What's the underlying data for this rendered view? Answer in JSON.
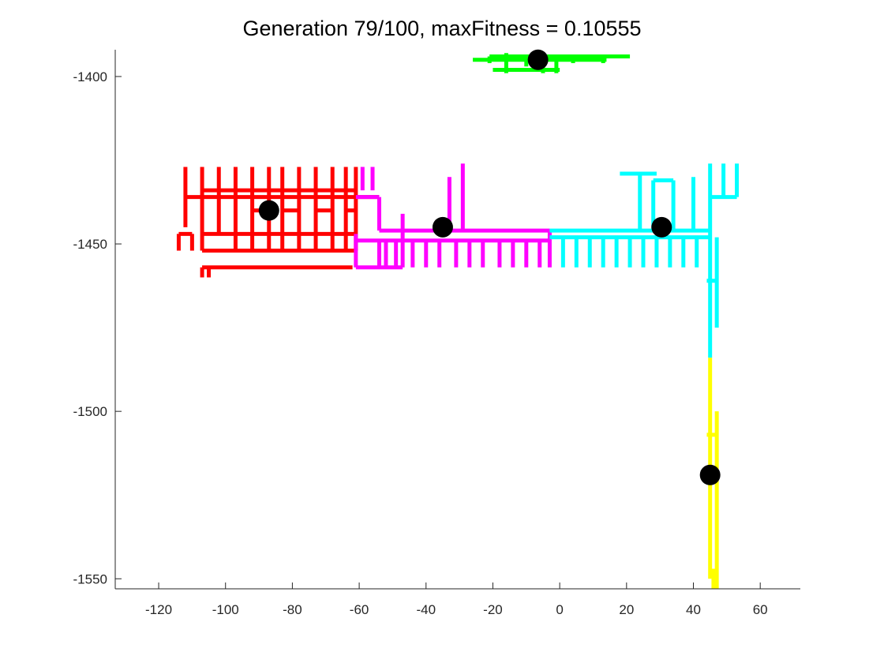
{
  "chart_data": {
    "type": "line",
    "title": "Generation 79/100, maxFitness = 0.10555",
    "xlabel": "",
    "ylabel": "",
    "xlim": [
      -133,
      72
    ],
    "ylim": [
      -1553,
      -1392
    ],
    "x_ticks": [
      -120,
      -100,
      -80,
      -60,
      -40,
      -20,
      0,
      20,
      40,
      60
    ],
    "y_ticks": [
      -1400,
      -1450,
      -1500,
      -1550
    ],
    "grid": false,
    "legend": "none",
    "box": false,
    "colors": {
      "green": "#00ff00",
      "red": "#ff0000",
      "magenta": "#ff00ff",
      "cyan": "#00ffff",
      "yellow": "#ffff00",
      "marker": "#000000"
    },
    "series": [
      {
        "color": "green",
        "segments": [
          [
            [
              -26,
              -1395
            ],
            [
              14,
              -1395
            ]
          ],
          [
            [
              -21,
              -1394
            ],
            [
              21,
              -1394
            ]
          ],
          [
            [
              -20,
              -1398
            ],
            [
              0,
              -1398
            ]
          ],
          [
            [
              -26,
              -1396
            ],
            [
              -26,
              -1396
            ]
          ],
          [
            [
              -21,
              -1394
            ],
            [
              -21,
              -1396
            ]
          ],
          [
            [
              -16,
              -1393
            ],
            [
              -16,
              -1399
            ]
          ],
          [
            [
              -10,
              -1394
            ],
            [
              -10,
              -1397
            ]
          ],
          [
            [
              -5,
              -1395
            ],
            [
              -5,
              -1399
            ]
          ],
          [
            [
              -1,
              -1394
            ],
            [
              -1,
              -1399
            ]
          ],
          [
            [
              4,
              -1394
            ],
            [
              4,
              -1396
            ]
          ],
          [
            [
              13,
              -1394
            ],
            [
              13,
              -1396
            ]
          ]
        ]
      },
      {
        "color": "red",
        "segments": [
          [
            [
              -114,
              -1447
            ],
            [
              -114,
              -1452
            ]
          ],
          [
            [
              -114,
              -1447
            ],
            [
              -110,
              -1447
            ]
          ],
          [
            [
              -110,
              -1447
            ],
            [
              -110,
              -1452
            ]
          ],
          [
            [
              -112,
              -1427
            ],
            [
              -112,
              -1445
            ]
          ],
          [
            [
              -112,
              -1436
            ],
            [
              -54,
              -1436
            ]
          ],
          [
            [
              -107,
              -1434
            ],
            [
              -61,
              -1434
            ]
          ],
          [
            [
              -107,
              -1427
            ],
            [
              -107,
              -1452
            ]
          ],
          [
            [
              -107,
              -1447
            ],
            [
              -61,
              -1447
            ]
          ],
          [
            [
              -107,
              -1452
            ],
            [
              -61,
              -1452
            ]
          ],
          [
            [
              -107,
              -1457
            ],
            [
              -62,
              -1457
            ]
          ],
          [
            [
              -107,
              -1457
            ],
            [
              -107,
              -1460
            ]
          ],
          [
            [
              -105,
              -1457
            ],
            [
              -105,
              -1460
            ]
          ],
          [
            [
              -102,
              -1427
            ],
            [
              -102,
              -1447
            ]
          ],
          [
            [
              -97,
              -1427
            ],
            [
              -97,
              -1452
            ]
          ],
          [
            [
              -92,
              -1427
            ],
            [
              -92,
              -1452
            ]
          ],
          [
            [
              -87,
              -1427
            ],
            [
              -87,
              -1452
            ]
          ],
          [
            [
              -83,
              -1427
            ],
            [
              -83,
              -1452
            ]
          ],
          [
            [
              -78,
              -1427
            ],
            [
              -78,
              -1452
            ]
          ],
          [
            [
              -73,
              -1427
            ],
            [
              -73,
              -1452
            ]
          ],
          [
            [
              -68,
              -1427
            ],
            [
              -68,
              -1452
            ]
          ],
          [
            [
              -64,
              -1427
            ],
            [
              -64,
              -1452
            ]
          ],
          [
            [
              -61,
              -1427
            ],
            [
              -61,
              -1452
            ]
          ],
          [
            [
              -92,
              -1440
            ],
            [
              -87,
              -1440
            ]
          ],
          [
            [
              -83,
              -1440
            ],
            [
              -78,
              -1440
            ]
          ],
          [
            [
              -73,
              -1440
            ],
            [
              -68,
              -1440
            ]
          ],
          [
            [
              -64,
              -1440
            ],
            [
              -61,
              -1440
            ]
          ]
        ]
      },
      {
        "color": "magenta",
        "segments": [
          [
            [
              -61,
              -1436
            ],
            [
              -54,
              -1436
            ]
          ],
          [
            [
              -54,
              -1436
            ],
            [
              -54,
              -1446
            ]
          ],
          [
            [
              -54,
              -1446
            ],
            [
              -3,
              -1446
            ]
          ],
          [
            [
              -61,
              -1449
            ],
            [
              -3,
              -1449
            ]
          ],
          [
            [
              -61,
              -1447
            ],
            [
              -61,
              -1457
            ]
          ],
          [
            [
              -61,
              -1457
            ],
            [
              -47,
              -1457
            ]
          ],
          [
            [
              -59,
              -1427
            ],
            [
              -59,
              -1434
            ]
          ],
          [
            [
              -56,
              -1427
            ],
            [
              -56,
              -1434
            ]
          ],
          [
            [
              -54,
              -1449
            ],
            [
              -54,
              -1457
            ]
          ],
          [
            [
              -52,
              -1449
            ],
            [
              -52,
              -1457
            ]
          ],
          [
            [
              -49,
              -1449
            ],
            [
              -49,
              -1457
            ]
          ],
          [
            [
              -47,
              -1441
            ],
            [
              -47,
              -1457
            ]
          ],
          [
            [
              -44,
              -1449
            ],
            [
              -44,
              -1457
            ]
          ],
          [
            [
              -40,
              -1449
            ],
            [
              -40,
              -1457
            ]
          ],
          [
            [
              -36,
              -1449
            ],
            [
              -36,
              -1457
            ]
          ],
          [
            [
              -33,
              -1430
            ],
            [
              -33,
              -1446
            ]
          ],
          [
            [
              -31,
              -1449
            ],
            [
              -31,
              -1457
            ]
          ],
          [
            [
              -29,
              -1426
            ],
            [
              -29,
              -1446
            ]
          ],
          [
            [
              -27,
              -1449
            ],
            [
              -27,
              -1457
            ]
          ],
          [
            [
              -23,
              -1449
            ],
            [
              -23,
              -1457
            ]
          ],
          [
            [
              -18,
              -1449
            ],
            [
              -18,
              -1457
            ]
          ],
          [
            [
              -14,
              -1449
            ],
            [
              -14,
              -1457
            ]
          ],
          [
            [
              -10,
              -1449
            ],
            [
              -10,
              -1457
            ]
          ],
          [
            [
              -6,
              -1449
            ],
            [
              -6,
              -1457
            ]
          ],
          [
            [
              -3,
              -1446
            ],
            [
              -3,
              -1457
            ]
          ]
        ]
      },
      {
        "color": "cyan",
        "segments": [
          [
            [
              -3,
              -1446
            ],
            [
              45,
              -1446
            ]
          ],
          [
            [
              -3,
              -1448
            ],
            [
              45,
              -1448
            ]
          ],
          [
            [
              1,
              -1448
            ],
            [
              1,
              -1457
            ]
          ],
          [
            [
              5,
              -1448
            ],
            [
              5,
              -1457
            ]
          ],
          [
            [
              9,
              -1448
            ],
            [
              9,
              -1457
            ]
          ],
          [
            [
              13,
              -1448
            ],
            [
              13,
              -1457
            ]
          ],
          [
            [
              17,
              -1448
            ],
            [
              17,
              -1457
            ]
          ],
          [
            [
              21,
              -1448
            ],
            [
              21,
              -1457
            ]
          ],
          [
            [
              25,
              -1448
            ],
            [
              25,
              -1457
            ]
          ],
          [
            [
              29,
              -1448
            ],
            [
              29,
              -1457
            ]
          ],
          [
            [
              33,
              -1448
            ],
            [
              33,
              -1457
            ]
          ],
          [
            [
              37,
              -1448
            ],
            [
              37,
              -1457
            ]
          ],
          [
            [
              41,
              -1448
            ],
            [
              41,
              -1457
            ]
          ],
          [
            [
              18,
              -1429
            ],
            [
              29,
              -1429
            ]
          ],
          [
            [
              24,
              -1429
            ],
            [
              24,
              -1446
            ]
          ],
          [
            [
              28,
              -1431
            ],
            [
              34,
              -1431
            ]
          ],
          [
            [
              28,
              -1431
            ],
            [
              28,
              -1446
            ]
          ],
          [
            [
              34,
              -1431
            ],
            [
              34,
              -1446
            ]
          ],
          [
            [
              40,
              -1430
            ],
            [
              40,
              -1446
            ]
          ],
          [
            [
              45,
              -1426
            ],
            [
              45,
              -1484
            ]
          ],
          [
            [
              45,
              -1436
            ],
            [
              53,
              -1436
            ]
          ],
          [
            [
              49,
              -1426
            ],
            [
              49,
              -1436
            ]
          ],
          [
            [
              53,
              -1426
            ],
            [
              53,
              -1436
            ]
          ],
          [
            [
              47,
              -1448
            ],
            [
              47,
              -1475
            ]
          ],
          [
            [
              44,
              -1461
            ],
            [
              47,
              -1461
            ]
          ]
        ]
      },
      {
        "color": "yellow",
        "segments": [
          [
            [
              45,
              -1484
            ],
            [
              45,
              -1550
            ]
          ],
          [
            [
              47,
              -1500
            ],
            [
              47,
              -1553
            ]
          ],
          [
            [
              44,
              -1507
            ],
            [
              47,
              -1507
            ]
          ],
          [
            [
              46,
              -1547
            ],
            [
              46,
              -1553
            ]
          ]
        ]
      }
    ],
    "markers": [
      {
        "x": -6.5,
        "y": -1395
      },
      {
        "x": -87,
        "y": -1440
      },
      {
        "x": -35,
        "y": -1445
      },
      {
        "x": 30.5,
        "y": -1445
      },
      {
        "x": 45,
        "y": -1519
      }
    ]
  }
}
